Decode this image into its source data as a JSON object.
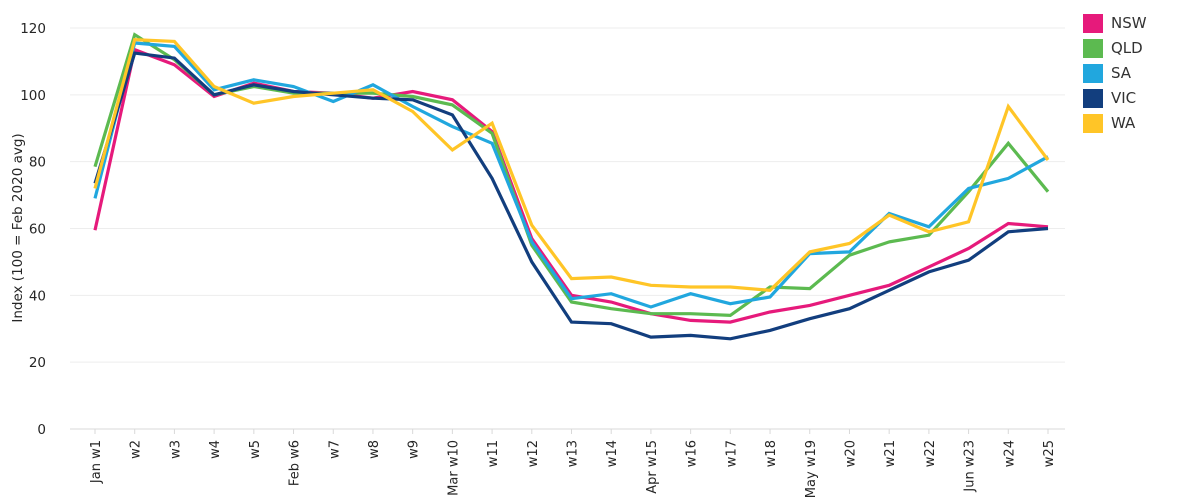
{
  "chart_data": {
    "type": "line",
    "title": "",
    "xlabel": "",
    "ylabel": "Index (100 = Feb 2020 avg)",
    "ylim": [
      0,
      120
    ],
    "yticks": [
      0,
      20,
      40,
      60,
      80,
      100,
      120
    ],
    "grid": true,
    "legend_position": "top-right",
    "categories": [
      "Jan w1",
      "w2",
      "w3",
      "w4",
      "w5",
      "Feb w6",
      "w7",
      "w8",
      "w9",
      "Mar w10",
      "w11",
      "w12",
      "w13",
      "w14",
      "Apr w15",
      "w16",
      "w17",
      "w18",
      "May w19",
      "w20",
      "w21",
      "w22",
      "Jun w23",
      "w24",
      "w25"
    ],
    "series": [
      {
        "name": "NSW",
        "color": "#E61A7B",
        "values": [
          59.5,
          113.5,
          109,
          99.5,
          103.5,
          101,
          100.5,
          99,
          101,
          98.5,
          89,
          57,
          40,
          38,
          34.5,
          32.5,
          32,
          35,
          37,
          40,
          43,
          48.5,
          54,
          61.5,
          60.5
        ]
      },
      {
        "name": "QLD",
        "color": "#5CBA50",
        "values": [
          78.5,
          118,
          110.5,
          100,
          102.5,
          100.5,
          100.5,
          100.5,
          99.5,
          97,
          88.5,
          55,
          38,
          36,
          34.5,
          34.5,
          34,
          42.5,
          42,
          52,
          56,
          58,
          71,
          85.5,
          71
        ]
      },
      {
        "name": "SA",
        "color": "#21A7DE",
        "values": [
          69,
          115.5,
          114.5,
          101.5,
          104.5,
          102.5,
          98,
          103,
          96.5,
          90.5,
          85.5,
          56,
          39,
          40.5,
          36.5,
          40.5,
          37.5,
          39.5,
          52.5,
          53,
          64.5,
          60.5,
          72,
          75,
          81.5
        ]
      },
      {
        "name": "VIC",
        "color": "#123E7E",
        "values": [
          73.5,
          112.5,
          111,
          100,
          103,
          101,
          100,
          99,
          98.5,
          94,
          75,
          50,
          32,
          31.5,
          27.5,
          28,
          27,
          29.5,
          33,
          36,
          41.5,
          47,
          50.5,
          59,
          60
        ]
      },
      {
        "name": "WA",
        "color": "#FFC527",
        "values": [
          72,
          116.5,
          116,
          102.5,
          97.5,
          99.5,
          100.5,
          101.5,
          95,
          83.5,
          91.5,
          61,
          45,
          45.5,
          43,
          42.5,
          42.5,
          41.5,
          53,
          55.5,
          64,
          59,
          62,
          96.5,
          80.5
        ]
      }
    ],
    "colors": {
      "axis_text": "#262626",
      "gridline": "#ededed",
      "axis_line": "#d9d9d9",
      "legend_text": "#333333",
      "background": "#ffffff"
    }
  }
}
